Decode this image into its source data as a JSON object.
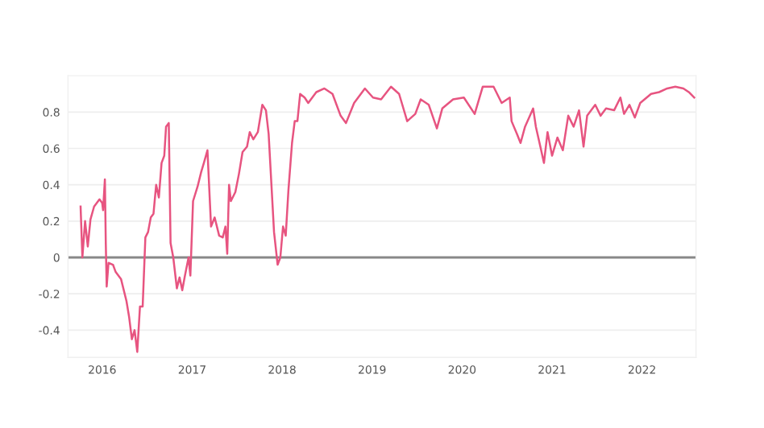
{
  "chart_data": {
    "type": "line",
    "x": [
      2015.76,
      2015.78,
      2015.81,
      2015.84,
      2015.87,
      2015.91,
      2015.97,
      2016.0,
      2016.01,
      2016.03,
      2016.04,
      2016.05,
      2016.07,
      2016.12,
      2016.15,
      2016.21,
      2016.27,
      2016.3,
      2016.33,
      2016.36,
      2016.39,
      2016.42,
      2016.45,
      2016.48,
      2016.51,
      2016.54,
      2016.57,
      2016.6,
      2016.63,
      2016.66,
      2016.69,
      2016.71,
      2016.74,
      2016.76,
      2016.79,
      2016.83,
      2016.86,
      2016.89,
      2016.92,
      2016.96,
      2016.98,
      2017.01,
      2017.06,
      2017.1,
      2017.13,
      2017.17,
      2017.21,
      2017.25,
      2017.3,
      2017.34,
      2017.37,
      2017.39,
      2017.41,
      2017.43,
      2017.48,
      2017.52,
      2017.56,
      2017.61,
      2017.64,
      2017.68,
      2017.73,
      2017.78,
      2017.82,
      2017.85,
      2017.91,
      2017.95,
      2017.98,
      2018.01,
      2018.04,
      2018.07,
      2018.11,
      2018.14,
      2018.17,
      2018.2,
      2018.25,
      2018.29,
      2018.38,
      2018.47,
      2018.56,
      2018.65,
      2018.71,
      2018.8,
      2018.92,
      2019.01,
      2019.1,
      2019.21,
      2019.3,
      2019.39,
      2019.48,
      2019.54,
      2019.63,
      2019.72,
      2019.78,
      2019.9,
      2020.02,
      2020.14,
      2020.23,
      2020.35,
      2020.44,
      2020.53,
      2020.55,
      2020.61,
      2020.65,
      2020.7,
      2020.79,
      2020.82,
      2020.87,
      2020.91,
      2020.95,
      2021.0,
      2021.06,
      2021.12,
      2021.18,
      2021.24,
      2021.3,
      2021.35,
      2021.39,
      2021.48,
      2021.54,
      2021.6,
      2021.69,
      2021.76,
      2021.8,
      2021.86,
      2021.92,
      2021.98,
      2022.1,
      2022.19,
      2022.28,
      2022.37,
      2022.46,
      2022.52,
      2022.58
    ],
    "series": [
      {
        "color": "#e75480",
        "values": [
          0.28,
          0.0,
          0.2,
          0.06,
          0.21,
          0.28,
          0.32,
          0.3,
          0.26,
          0.43,
          0.08,
          -0.16,
          -0.03,
          -0.04,
          -0.08,
          -0.12,
          -0.24,
          -0.33,
          -0.45,
          -0.4,
          -0.52,
          -0.27,
          -0.27,
          0.11,
          0.14,
          0.22,
          0.24,
          0.4,
          0.33,
          0.52,
          0.56,
          0.72,
          0.74,
          0.08,
          0.0,
          -0.17,
          -0.11,
          -0.18,
          -0.1,
          0.0,
          -0.1,
          0.31,
          0.39,
          0.47,
          0.52,
          0.59,
          0.17,
          0.22,
          0.12,
          0.11,
          0.17,
          0.02,
          0.4,
          0.31,
          0.36,
          0.46,
          0.58,
          0.61,
          0.69,
          0.65,
          0.69,
          0.84,
          0.81,
          0.68,
          0.14,
          -0.04,
          0.0,
          0.17,
          0.12,
          0.37,
          0.63,
          0.75,
          0.75,
          0.9,
          0.88,
          0.85,
          0.91,
          0.93,
          0.9,
          0.78,
          0.74,
          0.85,
          0.93,
          0.88,
          0.87,
          0.94,
          0.9,
          0.75,
          0.79,
          0.87,
          0.84,
          0.71,
          0.82,
          0.87,
          0.88,
          0.79,
          0.94,
          0.94,
          0.85,
          0.88,
          0.75,
          0.68,
          0.63,
          0.72,
          0.82,
          0.72,
          0.61,
          0.52,
          0.69,
          0.56,
          0.66,
          0.59,
          0.78,
          0.72,
          0.81,
          0.61,
          0.78,
          0.84,
          0.78,
          0.82,
          0.81,
          0.88,
          0.79,
          0.84,
          0.77,
          0.85,
          0.9,
          0.91,
          0.93,
          0.94,
          0.93,
          0.91,
          0.88
        ]
      }
    ],
    "xlim": [
      2015.62,
      2022.6
    ],
    "xticks": [
      2016,
      2017,
      2018,
      2019,
      2020,
      2021,
      2022
    ],
    "ylim": [
      -0.55,
      1.0
    ],
    "yticks": [
      -0.4,
      -0.2,
      0,
      0.2,
      0.4,
      0.6,
      0.8
    ],
    "grid": "y",
    "marker": "none",
    "line_style": "solid",
    "ref_lines": [
      {
        "axis": "y",
        "value": 0,
        "color": "#888888"
      }
    ]
  }
}
